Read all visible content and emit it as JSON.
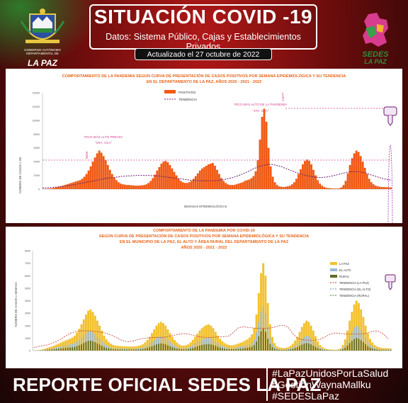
{
  "header": {
    "title": "SITUACIÓN COVID -19",
    "subtitle": "Datos: Sistema Público, Cajas y Establecimientos Privados",
    "updated": "Actualizado el  27  octubre de 2022"
  },
  "logos": {
    "left_org": "GOBIERNO AUTÓNOMO DEPARTAMENTAL DE",
    "left_name": "LA PAZ",
    "right_name_1": "SEDES",
    "right_name_2": "LA PAZ"
  },
  "colors": {
    "bar_orange": "#f05a14",
    "bar_lapaz": "#f2c12e",
    "bar_elalto": "#9cb9d6",
    "bar_rural": "#5f6b2a",
    "accent_purple": "#9b2fae"
  },
  "chart1": {
    "title_line1": "COMPORTAMIENTO DE LA PANDEMIA SEGÚN CURVA DE PRESENTACIÓN DE CASOS POSITIVOS POR SEMANA EPIDEMIOLÓGICA Y SU TENDENCIA",
    "title_line2": "EN EL DEPARTAMENTO DE LA PAZ, AÑOS 2020 - 2021 - 2022",
    "ylabel": "NÚMERO DE CASOS x SE.",
    "xlabel": "SEMANAS EPIDEMIOLÓGICAS",
    "legend": [
      "POSITIVOS",
      "TENDENCIA"
    ],
    "annotation_prev_1": "PICO MÁS ALTO PREVIO",
    "annotation_prev_2": "\"1RA. OLA\"",
    "annotation_high_1": "PICO MÁS ALTO DE LA PANDEMIA",
    "annotation_high_2": "\"4TA. OLA\"",
    "peak_label": "11677",
    "prev_peak_label": "5609"
  },
  "chart2": {
    "title_line1": "COMPORTAMIENTO DE LA PANDEMIA POR COVID-19",
    "title_line2": "SEGÚN CURVA DE PRESENTACIÓN DE CASOS POSITIVOS POR SEMANA EPIDEMIOLÓGICA Y SU TENDENCIA",
    "title_line3": "EN EL  MUNICIPIO DE LA PAZ, EL ALTO Y ÁREA RURAL DEL DEPARTAMENTO DE LA PAZ",
    "title_line4": "AÑOS 2020 - 2021 - 2022",
    "ylabel": "NÚMERO DE CASOS x SEMANA",
    "legend": [
      "LA PAZ",
      "EL ALTO",
      "RURAL",
      "TENDENCIA (LA PAZ)",
      "TENDENCIA (EL ALTO)",
      "TENDENCIA (RURAL)"
    ]
  },
  "chart_data": [
    {
      "type": "bar",
      "title": "COMPORTAMIENTO DE LA PANDEMIA SEGÚN CURVA DE PRESENTACIÓN DE CASOS POSITIVOS POR SEMANA EPIDEMIOLÓGICA Y SU TENDENCIA EN EL DEPARTAMENTO DE LA PAZ, AÑOS 2020 - 2021 - 2022",
      "ylabel": "NÚMERO DE CASOS x SE.",
      "xlabel": "SEMANAS EPIDEMIOLÓGICAS",
      "ylim": [
        0,
        14000
      ],
      "yticks": [
        0,
        2000,
        4000,
        6000,
        8000,
        10000,
        12000,
        14000
      ],
      "grid": false,
      "legend_position": "top-center",
      "series": [
        {
          "name": "POSITIVOS",
          "values": [
            20,
            40,
            60,
            90,
            120,
            200,
            300,
            350,
            400,
            500,
            600,
            700,
            800,
            900,
            1000,
            1100,
            1200,
            1300,
            1500,
            1800,
            2200,
            2700,
            3300,
            4000,
            4600,
            5200,
            5609,
            5300,
            4800,
            4200,
            3500,
            2800,
            2200,
            1700,
            1300,
            1000,
            800,
            700,
            650,
            600,
            600,
            550,
            550,
            500,
            500,
            520,
            550,
            600,
            700,
            900,
            1200,
            1600,
            2100,
            2700,
            3200,
            3700,
            4000,
            4100,
            3900,
            3500,
            3000,
            2500,
            2000,
            1500,
            1200,
            1000,
            900,
            900,
            1000,
            1200,
            1500,
            1900,
            2300,
            2700,
            3000,
            3200,
            3400,
            3600,
            3700,
            3800,
            3400,
            2800,
            2200,
            1600,
            1200,
            900,
            700,
            600,
            600,
            600,
            700,
            800,
            900,
            1000,
            1200,
            1300,
            1400,
            1600,
            1900,
            2600,
            4200,
            7200,
            10500,
            11677,
            9800,
            6000,
            3300,
            1800,
            1000,
            600,
            400,
            350,
            300,
            350,
            400,
            500,
            700,
            1000,
            1500,
            2200,
            2900,
            3600,
            4100,
            4300,
            4100,
            3600,
            2800,
            2000,
            1300,
            800,
            500,
            300,
            200,
            150,
            120,
            100,
            90,
            80,
            120,
            250,
            600,
            1200,
            2300,
            3500,
            4500,
            5200,
            5600,
            5400,
            4800,
            4000,
            3100,
            2200,
            1500,
            1000,
            700,
            500,
            400,
            350,
            300,
            300,
            280,
            260,
            250
          ]
        },
        {
          "name": "TENDENCIA",
          "values": [
            150,
            200,
            260,
            330,
            420,
            520,
            650,
            800,
            950,
            1100,
            1250,
            1400,
            1550,
            1650,
            1750,
            1850,
            1900,
            1950,
            2000,
            2000,
            2000,
            1950,
            1900,
            1800,
            1700,
            1600,
            1500,
            1400,
            1300,
            1250,
            1200,
            1200,
            1200,
            1250,
            1350,
            1500,
            1700,
            1950,
            2250,
            2600,
            3000,
            3300,
            3500,
            3600,
            3500,
            3300,
            3000,
            2700,
            2400,
            2150,
            1950,
            1800,
            1700,
            1700,
            1800,
            1950,
            2150,
            2350,
            2500,
            2550,
            2500,
            2350,
            2100,
            1850,
            1600,
            1400,
            1300
          ]
        }
      ]
    },
    {
      "type": "bar",
      "title": "COMPORTAMIENTO DE LA PANDEMIA POR COVID-19 SEGÚN CURVA DE PRESENTACIÓN DE CASOS POSITIVOS POR SEMANA EPIDEMIOLÓGICA Y SU TENDENCIA EN EL MUNICIPIO DE LA PAZ, EL ALTO Y ÁREA RURAL DEL DEPARTAMENTO DE LA PAZ AÑOS 2020 - 2021 - 2022",
      "ylabel": "NÚMERO DE CASOS x SEMANA",
      "ylim": [
        0,
        8000
      ],
      "yticks": [
        0,
        1000,
        2000,
        3000,
        4000,
        5000,
        6000,
        7000,
        8000
      ],
      "grid": false,
      "legend_position": "top-right",
      "series": [
        {
          "name": "LA PAZ",
          "values": [
            10,
            20,
            40,
            60,
            90,
            150,
            220,
            280,
            330,
            400,
            480,
            560,
            640,
            720,
            800,
            880,
            960,
            1050,
            1200,
            1450,
            1750,
            2100,
            2500,
            2900,
            3200,
            3300,
            3100,
            2800,
            2400,
            2000,
            1600,
            1200,
            900,
            700,
            550,
            450,
            400,
            380,
            360,
            350,
            340,
            330,
            320,
            320,
            330,
            350,
            380,
            420,
            500,
            650,
            850,
            1100,
            1400,
            1700,
            2000,
            2200,
            2300,
            2200,
            2000,
            1700,
            1400,
            1100,
            850,
            650,
            500,
            420,
            400,
            420,
            500,
            650,
            850,
            1100,
            1350,
            1600,
            1800,
            1950,
            2050,
            2100,
            2000,
            1800,
            1500,
            1200,
            950,
            750,
            600,
            500,
            450,
            430,
            450,
            500,
            560,
            620,
            700,
            800,
            900,
            1050,
            1300,
            1800,
            2900,
            4600,
            6200,
            7000,
            6000,
            3800,
            2100,
            1100,
            600,
            350,
            250,
            220,
            200,
            230,
            280,
            380,
            550,
            800,
            1100,
            1500,
            1900,
            2200,
            2400,
            2300,
            2000,
            1600,
            1150,
            750,
            450,
            280,
            180,
            120,
            90,
            80,
            70,
            60,
            90,
            180,
            450,
            900,
            1600,
            2400,
            3100,
            3700,
            4000,
            3800,
            3300,
            2700,
            2000,
            1400,
            950,
            650,
            450,
            330,
            260,
            220,
            200,
            190,
            180,
            170
          ]
        },
        {
          "name": "EL ALTO",
          "values": [
            5,
            10,
            20,
            30,
            50,
            80,
            120,
            150,
            180,
            220,
            260,
            300,
            340,
            380,
            420,
            460,
            500,
            540,
            600,
            700,
            850,
            1000,
            1200,
            1400,
            1550,
            1600,
            1500,
            1350,
            1150,
            950,
            750,
            580,
            440,
            340,
            270,
            220,
            200,
            190,
            180,
            175,
            170,
            165,
            160,
            160,
            165,
            175,
            190,
            210,
            250,
            320,
            420,
            550,
            700,
            850,
            1000,
            1100,
            1150,
            1100,
            1000,
            850,
            700,
            550,
            420,
            320,
            250,
            210,
            200,
            210,
            250,
            320,
            420,
            550,
            680,
            800,
            900,
            980,
            1020,
            1050,
            1000,
            900,
            750,
            600,
            470,
            370,
            300,
            250,
            225,
            215,
            225,
            250,
            280,
            310,
            350,
            400,
            450,
            520,
            650,
            900,
            1450,
            2300,
            3100,
            3500,
            3000,
            1900,
            1050,
            550,
            300,
            175,
            125,
            110,
            100,
            115,
            140,
            190,
            275,
            400,
            550,
            750,
            950,
            1100,
            1200,
            1150,
            1000,
            800,
            575,
            375,
            225,
            140,
            90,
            60,
            45,
            40,
            35,
            30,
            45,
            90,
            225,
            450,
            800,
            1200,
            1550,
            1850,
            2000,
            1900,
            1650,
            1350,
            1000,
            700,
            475,
            325,
            225,
            165,
            130,
            110,
            100,
            95,
            90,
            85
          ]
        },
        {
          "name": "RURAL",
          "values": [
            2,
            5,
            10,
            15,
            25,
            40,
            60,
            75,
            90,
            110,
            130,
            150,
            170,
            190,
            210,
            230,
            250,
            270,
            300,
            350,
            425,
            500,
            600,
            700,
            775,
            800,
            750,
            675,
            575,
            475,
            375,
            290,
            220,
            170,
            135,
            110,
            100,
            95,
            90,
            88,
            85,
            83,
            80,
            80,
            83,
            88,
            95,
            105,
            125,
            160,
            210,
            275,
            350,
            425,
            500,
            550,
            575,
            550,
            500,
            425,
            350,
            275,
            210,
            160,
            125,
            105,
            100,
            105,
            125,
            160,
            210,
            275,
            340,
            400,
            450,
            490,
            510,
            525,
            500,
            450,
            375,
            300,
            235,
            185,
            150,
            125,
            113,
            108,
            113,
            125,
            140,
            155,
            175,
            200,
            225,
            260,
            325,
            450,
            725,
            1150,
            1550,
            1750,
            1500,
            950,
            525,
            275,
            150,
            88,
            63,
            55,
            50,
            58,
            70,
            95,
            138,
            200,
            275,
            375,
            475,
            550,
            600,
            575,
            500,
            400,
            288,
            188,
            113,
            70,
            45,
            30,
            23,
            20,
            18,
            15,
            23,
            45,
            113,
            225,
            400,
            600,
            775,
            925,
            1000,
            950,
            825,
            675,
            500,
            350,
            238,
            163,
            113,
            83,
            65,
            55,
            50,
            48,
            45,
            43
          ]
        }
      ]
    }
  ],
  "footer": {
    "report": "REPORTE OFICIAL SEDES LA PAZ",
    "hashtags": [
      "#LaPazUnidosPorLaSalud",
      "#GestiónWaynaMallku",
      "#SEDESLaPaz"
    ]
  }
}
